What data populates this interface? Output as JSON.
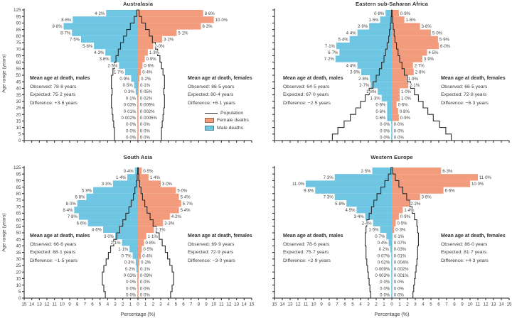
{
  "figure": {
    "xlabel": "Percentage (%)",
    "ylabel": "Age range (years)",
    "x_tick_labels": [
      "15",
      "14",
      "13",
      "12",
      "11",
      "10",
      "9",
      "8",
      "7",
      "6",
      "5",
      "4",
      "3",
      "2",
      "1",
      "0",
      "1",
      "2",
      "3",
      "4",
      "5",
      "6",
      "7",
      "8",
      "9",
      "10",
      "11",
      "12",
      "13",
      "14",
      "15"
    ],
    "y_tick_labels": [
      "0",
      "5",
      "10",
      "15",
      "20",
      "25",
      "30",
      "35",
      "40",
      "45",
      "50",
      "55",
      "60",
      "65",
      "70",
      "75",
      "80",
      "85",
      "90",
      "95",
      "125"
    ],
    "x_range": [
      -15,
      15
    ],
    "legend": {
      "population_label": "Population",
      "female_label": "Female deaths",
      "male_label": "Male deaths"
    },
    "colors": {
      "male_deaths": "#6FC6E2",
      "female_deaths": "#F29C7D",
      "population_line": "#2B2B2B",
      "axis": "#1F1F1F",
      "label_text": "#3E3E3E"
    }
  },
  "chart_data": [
    {
      "title": "Australasia",
      "type": "bar",
      "orientation": "population-pyramid",
      "age_bins": [
        "0–4",
        "5–9",
        "10–14",
        "15–19",
        "20–24",
        "25–29",
        "30–34",
        "35–39",
        "40–44",
        "45–49",
        "50–54",
        "55–59",
        "60–64",
        "65–69",
        "70–74",
        "75–79",
        "80–84",
        "85–89",
        "90–94",
        "95+"
      ],
      "series": [
        {
          "name": "Male deaths",
          "values": [
            0,
            0,
            0,
            0.002,
            0.01,
            0.03,
            0.1,
            0.3,
            0.5,
            0.9,
            1.7,
            2.5,
            3.6,
            4.3,
            5.8,
            7.5,
            8.7,
            9.8,
            8.6,
            4.2
          ],
          "labels": [
            "0·0%",
            "0·0%",
            "0·0%",
            "0·002%",
            "0·01%",
            "0·03%",
            "0·1%",
            "0·3%",
            "0·5%",
            "0·9%",
            "1·7%",
            "2·5%",
            "3·6%",
            "4·3%",
            "5·8%",
            "7·5%",
            "8·7%",
            "9·8%",
            "8·6%",
            "4·2%"
          ]
        },
        {
          "name": "Female deaths",
          "values": [
            0,
            0,
            0,
            0.0005,
            0.002,
            0.006,
            0.02,
            0.05,
            0.1,
            0.2,
            0.4,
            0.6,
            0.9,
            1.3,
            2.0,
            3.2,
            5.1,
            8.3,
            10.0,
            8.6
          ],
          "labels": [
            "0·0%",
            "0·0%",
            "0·0%",
            "0·0005%",
            "0·002%",
            "0·006%",
            "0·02%",
            "0·05%",
            "0·1%",
            "0·2%",
            "0·4%",
            "0·6%",
            "0·9%",
            "1·3%",
            "2·0%",
            "3·2%",
            "5·1%",
            "8·3%",
            "10·0%",
            "8·6%"
          ]
        },
        {
          "name": "Population",
          "values": [
            3.1,
            3.1,
            3.2,
            3.3,
            3.4,
            3.5,
            3.5,
            3.4,
            3.5,
            3.5,
            3.3,
            3.1,
            2.9,
            2.6,
            2.3,
            1.9,
            1.5,
            1.0,
            0.5,
            0.15
          ]
        }
      ],
      "stats_males": {
        "heading": "Mean age at death, males",
        "observed": "Observed: 78·8 years",
        "expected": "Expected: 75·2 years",
        "difference": "Difference: +3·6 years"
      },
      "stats_females": {
        "heading": "Mean age at death, females",
        "observed": "Observed: 86·5 years",
        "expected": "Expected: 80·4 years",
        "difference": "Difference: +6·1 years"
      }
    },
    {
      "title": "Eastern sub-Saharan Africa",
      "type": "bar",
      "orientation": "population-pyramid",
      "age_bins": [
        "0–4",
        "5–9",
        "10–14",
        "15–19",
        "20–24",
        "25–29",
        "30–34",
        "35–39",
        "40–44",
        "45–49",
        "50–54",
        "55–59",
        "60–64",
        "65–69",
        "70–74",
        "75–79",
        "80–84",
        "85–89",
        "90–94",
        "95+"
      ],
      "series": [
        {
          "name": "Male deaths",
          "values": [
            0,
            0,
            0,
            0.6,
            0.6,
            0.6,
            1.3,
            1.8,
            2.7,
            2.8,
            3.9,
            4.4,
            7.2,
            6.7,
            7.1,
            5.4,
            4.4,
            2.9,
            1.5,
            0.8
          ],
          "labels": [
            "0·0%",
            "0·0%",
            "0·0%",
            "0·6%",
            "0·6%",
            "0·6%",
            "1·3%",
            "1·8%",
            "2·7%",
            "2·8%",
            "3·9%",
            "4·4%",
            "7·2%",
            "6·7%",
            "7·1%",
            "5·4%",
            "4·4%",
            "2·9%",
            "1·5%",
            "0·8%"
          ]
        },
        {
          "name": "Female deaths",
          "values": [
            0,
            0,
            0,
            0.9,
            0.8,
            0.6,
            1.0,
            1.0,
            2.1,
            1.9,
            2.8,
            2.7,
            3.9,
            4.5,
            6.0,
            5.9,
            5.0,
            3.6,
            1.6,
            0.9
          ],
          "labels": [
            "0·0%",
            "0·0%",
            "0·0%",
            "0·9%",
            "0·8%",
            "0·6%",
            "1·0%",
            "1·0%",
            "2·1%",
            "1·9%",
            "2·8%",
            "2·7%",
            "3·9%",
            "4·5%",
            "6·0%",
            "5·9%",
            "5·0%",
            "3·6%",
            "1·6%",
            "0·9%"
          ]
        },
        {
          "name": "Population",
          "values": [
            7.6,
            6.9,
            6.1,
            5.3,
            4.6,
            4.0,
            3.4,
            2.9,
            2.4,
            2.0,
            1.6,
            1.3,
            1.0,
            0.8,
            0.6,
            0.4,
            0.3,
            0.18,
            0.09,
            0.04
          ]
        }
      ],
      "stats_males": {
        "heading": "Mean age at death, males",
        "observed": "Observed: 64·5 years",
        "expected": "Expected: 67·0 years",
        "difference": "Difference: −2·5 years"
      },
      "stats_females": {
        "heading": "Mean age at death, females",
        "observed": "Observed: 66·5 years",
        "expected": "Expected: 72·8 years",
        "difference": "Difference: −6·3 years"
      }
    },
    {
      "title": "South Asia",
      "type": "bar",
      "orientation": "population-pyramid",
      "age_bins": [
        "0–4",
        "5–9",
        "10–14",
        "15–19",
        "20–24",
        "25–29",
        "30–34",
        "35–39",
        "40–44",
        "45–49",
        "50–54",
        "55–59",
        "60–64",
        "65–69",
        "70–74",
        "75–79",
        "80–84",
        "85–89",
        "90–94",
        "95+"
      ],
      "series": [
        {
          "name": "Male deaths",
          "values": [
            0,
            0,
            0,
            0.03,
            0.2,
            0.3,
            0.7,
            1.1,
            2.1,
            3.0,
            4.6,
            6.6,
            7.8,
            8.4,
            8.0,
            6.8,
            5.9,
            3.3,
            1.4,
            0.4
          ],
          "labels": [
            "0·0%",
            "0·0%",
            "0·0%",
            "0·03%",
            "0·2%",
            "0·3%",
            "0·7%",
            "1·1%",
            "2·1%",
            "3·0%",
            "4·6%",
            "6·6%",
            "7·8%",
            "8·4%",
            "8·0%",
            "6·8%",
            "5·9%",
            "3·3%",
            "1·4%",
            "0·4%"
          ]
        },
        {
          "name": "Female deaths",
          "values": [
            0,
            0,
            0,
            0.09,
            0.1,
            0.2,
            0.4,
            0.5,
            0.8,
            1.1,
            2.1,
            3.3,
            4.2,
            5.4,
            5.7,
            5.4,
            5.0,
            3.0,
            1.4,
            0.5
          ],
          "labels": [
            "0·0%",
            "0·0%",
            "0·0%",
            "0·09%",
            "0·1%",
            "0·2%",
            "0·4%",
            "0·5%",
            "0·8%",
            "1·1%",
            "2·1%",
            "3·3%",
            "4·2%",
            "5·4%",
            "5·7%",
            "5·4%",
            "5·0%",
            "3·0%",
            "1·4%",
            "0·5%"
          ]
        },
        {
          "name": "Population",
          "values": [
            4.3,
            4.5,
            4.7,
            4.7,
            4.5,
            4.2,
            3.9,
            3.6,
            3.2,
            2.8,
            2.4,
            2.0,
            1.6,
            1.2,
            0.9,
            0.6,
            0.4,
            0.22,
            0.1,
            0.04
          ]
        }
      ],
      "stats_males": {
        "heading": "Mean age at death, males",
        "observed": "Observed: 66·6 years",
        "expected": "Expected: 68·1 years",
        "difference": "Difference: −1·5 years"
      },
      "stats_females": {
        "heading": "Mean age at death, females",
        "observed": "Observed: 69·9 years",
        "expected": "Expected: 72·9 years",
        "difference": "Difference: −3·0 years"
      }
    },
    {
      "title": "Western Europe",
      "type": "bar",
      "orientation": "population-pyramid",
      "age_bins": [
        "0–4",
        "5–9",
        "10–14",
        "15–19",
        "20–24",
        "25–29",
        "30–34",
        "35–39",
        "40–44",
        "45–49",
        "50–54",
        "55–59",
        "60–64",
        "65–69",
        "70–74",
        "75–79",
        "80–84",
        "85–89",
        "90–94",
        "95+"
      ],
      "series": [
        {
          "name": "Male deaths",
          "values": [
            0,
            0,
            0,
            0.003,
            0.009,
            0.02,
            0.07,
            0.2,
            0.4,
            0.7,
            1.5,
            2.4,
            3.4,
            4.5,
            5.8,
            7.3,
            9.8,
            11.0,
            7.3,
            2.5
          ],
          "labels": [
            "0·0%",
            "0·0%",
            "0·0%",
            "0·003%",
            "0·009%",
            "0·02%",
            "0·07%",
            "0·2%",
            "0·4%",
            "0·7%",
            "1·5%",
            "2·4%",
            "3·4%",
            "4·5%",
            "5·8%",
            "7·3%",
            "9·8%",
            "11·0%",
            "7·3%",
            "2·5%"
          ]
        },
        {
          "name": "Female deaths",
          "values": [
            0,
            0,
            0,
            0.001,
            0.002,
            0.004,
            0.01,
            0.03,
            0.07,
            0.1,
            0.3,
            0.5,
            0.9,
            1.4,
            2.2,
            3.6,
            6.6,
            10.0,
            11.0,
            6.3
          ],
          "labels": [
            "0·0%",
            "0·0%",
            "0·0%",
            "0·001%",
            "0·002%",
            "0·004%",
            "0·01%",
            "0·03%",
            "0·07%",
            "0·1%",
            "0·3%",
            "0·5%",
            "0·9%",
            "1·4%",
            "2·2%",
            "3·6%",
            "6·6%",
            "10·0%",
            "11·0%",
            "6·3%"
          ]
        },
        {
          "name": "Population",
          "values": [
            2.7,
            2.8,
            2.9,
            3.0,
            3.1,
            3.2,
            3.3,
            3.3,
            3.4,
            3.4,
            3.3,
            3.2,
            2.9,
            2.6,
            2.3,
            1.9,
            1.4,
            0.9,
            0.45,
            0.12
          ]
        }
      ],
      "stats_males": {
        "heading": "Mean age at death, males",
        "observed": "Observed: 78·6 years",
        "expected": "Expected: 75·7 years",
        "difference": "Difference: +2·9 years"
      },
      "stats_females": {
        "heading": "Mean age at death, females",
        "observed": "Observed: 86·0 years",
        "expected": "Expected: 81·7 years",
        "difference": "Difference: +4·3 years"
      }
    }
  ]
}
